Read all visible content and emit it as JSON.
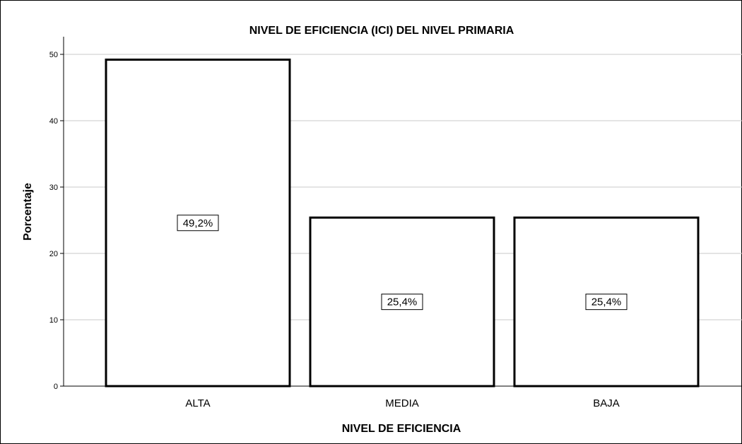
{
  "chart_data": {
    "type": "bar",
    "title": "NIVEL DE EFICIENCIA (ICI) DEL NIVEL PRIMARIA",
    "xlabel": "NIVEL DE EFICIENCIA",
    "ylabel": "Porcentaje",
    "categories": [
      "ALTA",
      "MEDIA",
      "BAJA"
    ],
    "values": [
      49.2,
      25.4,
      25.4
    ],
    "data_labels": [
      "49,2%",
      "25,4%",
      "25,4%"
    ],
    "ylim": [
      0,
      50
    ],
    "yticks": [
      "0",
      "10",
      "20",
      "30",
      "40",
      "50"
    ],
    "grid": true,
    "colors": {
      "bar_fill": "#ffffff",
      "bar_stroke": "#000000",
      "grid": "#c8c8c8"
    }
  }
}
